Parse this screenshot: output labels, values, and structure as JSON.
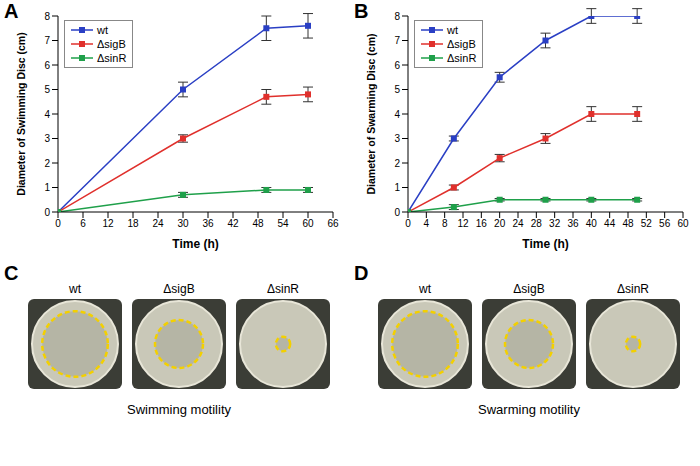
{
  "chart_data": [
    {
      "type": "line",
      "panel": "A",
      "x_label": "Time (h)",
      "y_label": "Diameter of Swimming Disc (cm)",
      "x": [
        0,
        30,
        50,
        60
      ],
      "series": [
        {
          "name": "wt",
          "color": "#2a3fc4",
          "marker": "square",
          "values": [
            0,
            5.0,
            7.5,
            7.6
          ],
          "errors": [
            0,
            0.3,
            0.5,
            0.5
          ]
        },
        {
          "name": "ΔsigB",
          "color": "#e0302c",
          "marker": "square",
          "values": [
            0,
            3.0,
            4.7,
            4.8
          ],
          "errors": [
            0,
            0.15,
            0.3,
            0.3
          ]
        },
        {
          "name": "ΔsinR",
          "color": "#1fa04a",
          "marker": "square",
          "values": [
            0,
            0.7,
            0.9,
            0.9
          ],
          "errors": [
            0,
            0.1,
            0.1,
            0.1
          ]
        }
      ],
      "xlim": [
        0,
        66
      ],
      "xticks": [
        0,
        6,
        12,
        18,
        24,
        30,
        36,
        42,
        48,
        54,
        60,
        66
      ],
      "ylim": [
        0,
        8
      ],
      "yticks": [
        0,
        1,
        2,
        3,
        4,
        5,
        6,
        7,
        8
      ],
      "grid": false,
      "legend": "upper left"
    },
    {
      "type": "line",
      "panel": "B",
      "x_label": "Time (h)",
      "y_label": "Diameter of Swarming Disc (cm)",
      "x": [
        0,
        10,
        20,
        30,
        40,
        50
      ],
      "series": [
        {
          "name": "wt",
          "color": "#2a3fc4",
          "marker": "square",
          "values": [
            0,
            3.0,
            5.5,
            7.0,
            8.0,
            8.0
          ],
          "errors": [
            0,
            0.1,
            0.2,
            0.3,
            0.3,
            0.3
          ]
        },
        {
          "name": "ΔsigB",
          "color": "#e0302c",
          "marker": "square",
          "values": [
            0,
            1.0,
            2.2,
            3.0,
            4.0,
            4.0
          ],
          "errors": [
            0,
            0.1,
            0.15,
            0.2,
            0.3,
            0.3
          ]
        },
        {
          "name": "ΔsinR",
          "color": "#1fa04a",
          "marker": "square",
          "values": [
            0,
            0.2,
            0.5,
            0.5,
            0.5,
            0.5
          ],
          "errors": [
            0,
            0.1,
            0.05,
            0.05,
            0.05,
            0.05
          ]
        }
      ],
      "xlim": [
        0,
        60
      ],
      "xticks": [
        0,
        4,
        8,
        12,
        16,
        20,
        24,
        28,
        32,
        36,
        40,
        44,
        48,
        52,
        56,
        60
      ],
      "ylim": [
        0,
        8
      ],
      "yticks": [
        0,
        1,
        2,
        3,
        4,
        5,
        6,
        7,
        8
      ],
      "grid": false,
      "legend": "upper left"
    }
  ],
  "photo_panels": [
    {
      "panel": "C",
      "plates": [
        "wt",
        "ΔsigB",
        "ΔsinR"
      ],
      "caption": "Swimming motility"
    },
    {
      "panel": "D",
      "plates": [
        "wt",
        "ΔsigB",
        "ΔsinR"
      ],
      "caption": "Swarming motility"
    }
  ]
}
